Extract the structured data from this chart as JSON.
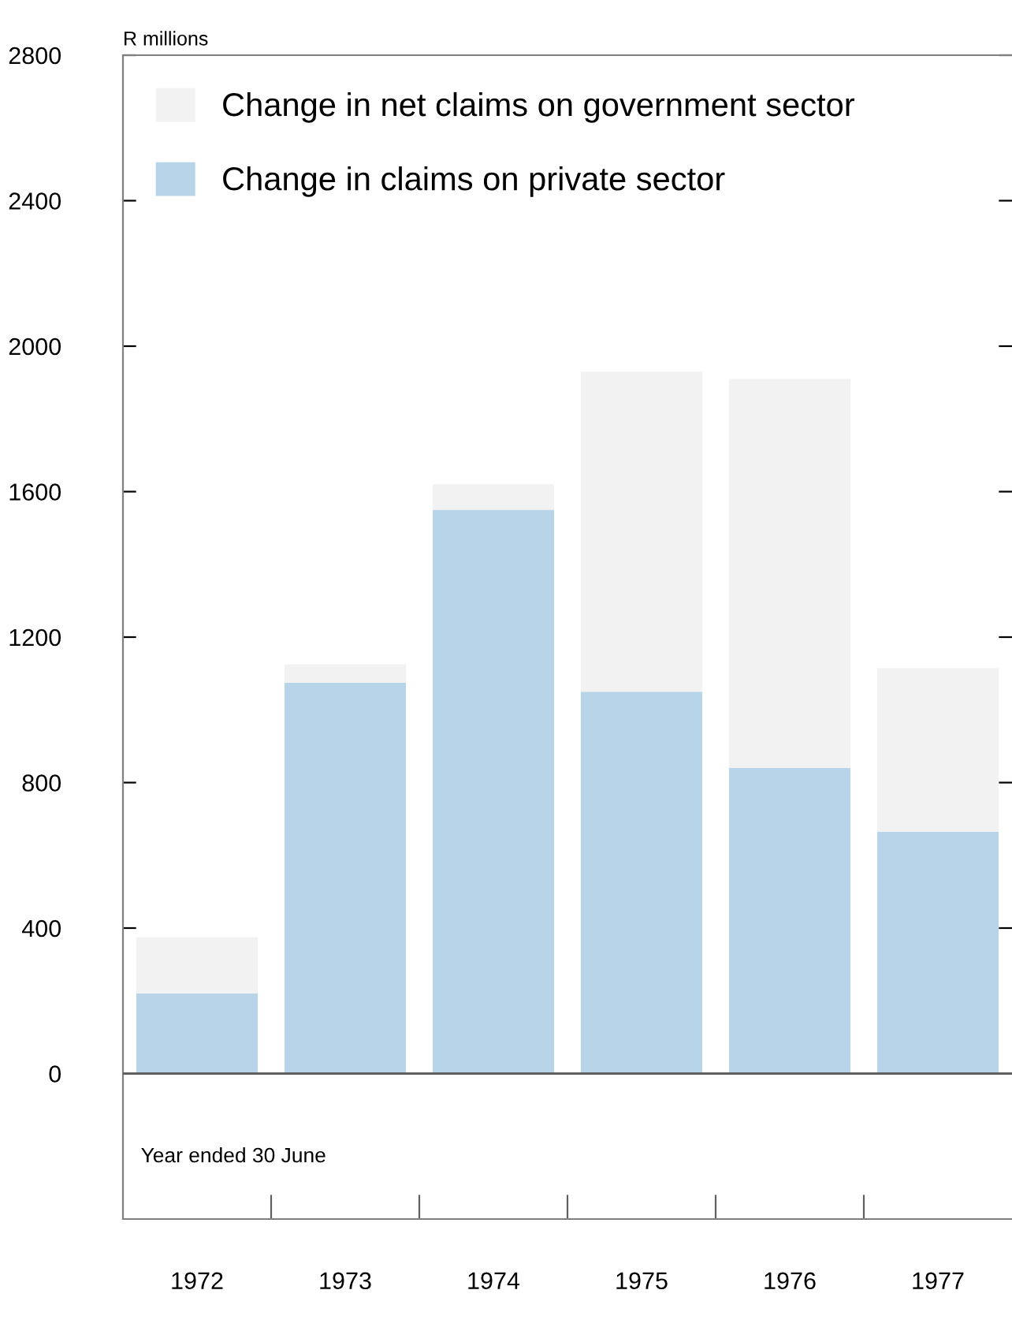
{
  "chart_data": {
    "type": "bar",
    "stacked": true,
    "ylabel": "R millions",
    "categories": [
      "1972",
      "1973",
      "1974",
      "1975",
      "1976",
      "1977"
    ],
    "series": [
      {
        "name": "Change in claims on private sector",
        "color": "#b8d4e8",
        "values": [
          220,
          1075,
          1550,
          1050,
          840,
          665
        ]
      },
      {
        "name": "Change in net claims on government sector",
        "color": "#f2f2f2",
        "values": [
          155,
          50,
          70,
          880,
          1070,
          450
        ]
      }
    ],
    "ylim": [
      -400,
      2800
    ],
    "yticks": [
      0,
      400,
      800,
      1200,
      1600,
      2000,
      2400,
      2800
    ],
    "ref_lines": [
      {
        "axis": "y",
        "value": 0,
        "color": "#606060"
      }
    ],
    "annotations": [
      "Year ended 30 June"
    ],
    "legend": "top left",
    "grid": false
  }
}
